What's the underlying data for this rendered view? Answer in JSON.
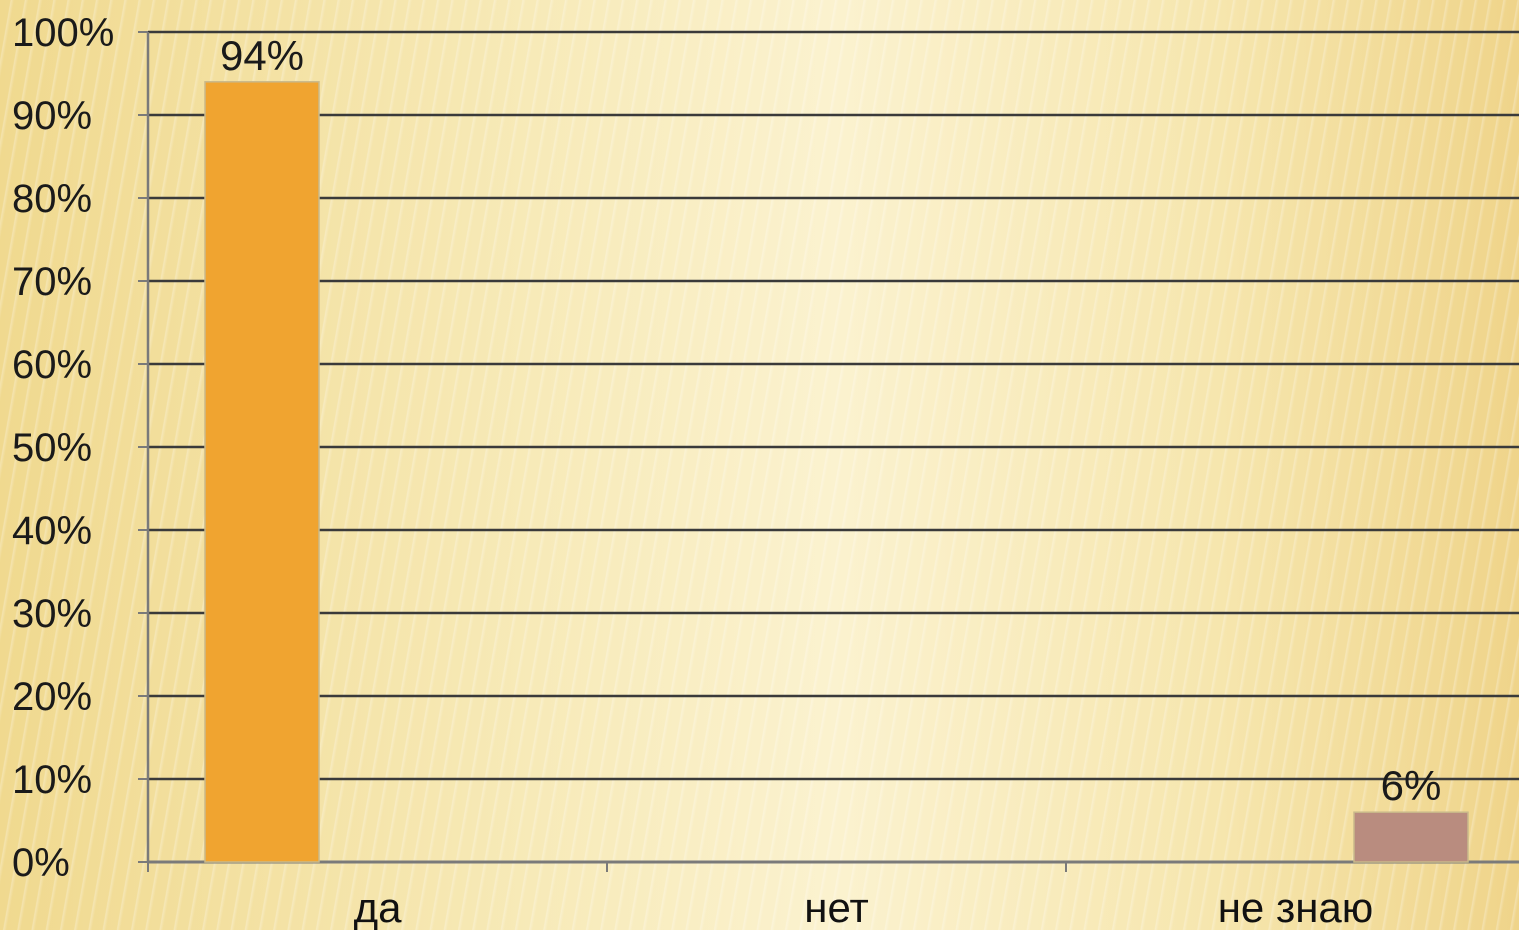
{
  "chart_data": {
    "type": "bar",
    "categories": [
      "да",
      "нет",
      "не знаю"
    ],
    "values": [
      94,
      0,
      6
    ],
    "data_labels": [
      "94%",
      "",
      "6%"
    ],
    "bar_colors": [
      "#f0a430",
      "#b9c26e",
      "#b98c7f"
    ],
    "y_ticks": [
      "0%",
      "10%",
      "20%",
      "30%",
      "40%",
      "50%",
      "60%",
      "70%",
      "80%",
      "90%",
      "100%"
    ],
    "ylim": [
      0,
      100
    ],
    "grid": true,
    "gridline_color": "#3a3a3a",
    "axis_color": "#7a7a7a"
  }
}
